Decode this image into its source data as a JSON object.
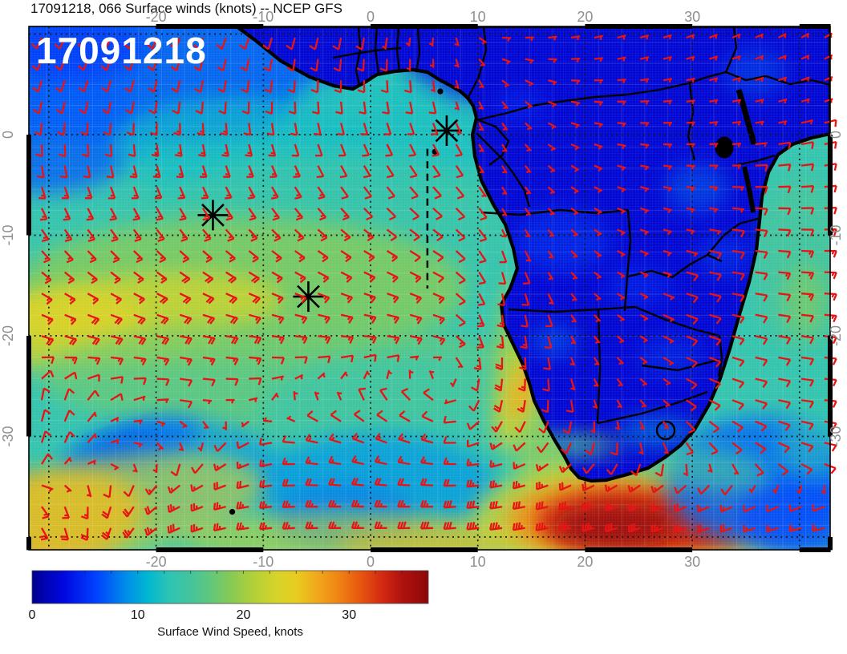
{
  "title": "17091218, 066 Surface winds (knots) -- NCEP GFS",
  "overlay_label": "17091218",
  "colors": {
    "barb": "#e81414",
    "land_border": "#000000",
    "grid": "#1a1a1a",
    "tick_label": "#8f8f8f",
    "title": "#111111",
    "overlay": "#ffffff",
    "frame": "#000000",
    "track": "#111111"
  },
  "axes": {
    "lon_tick_labels": [
      "-20",
      "-10",
      "0",
      "10",
      "20",
      "30"
    ],
    "lon_tick_values": [
      -20,
      -10,
      0,
      10,
      20,
      30
    ],
    "lat_tick_labels": [
      "0",
      "-10",
      "-20",
      "-30"
    ],
    "lat_tick_values": [
      0,
      -10,
      -20,
      -30
    ],
    "lon_gridlines": [
      -30,
      -20,
      -10,
      0,
      10,
      20,
      30,
      40
    ],
    "lat_gridlines": [
      10,
      0,
      -10,
      -20,
      -30,
      -40
    ],
    "lon_range": [
      -31.9,
      42.9
    ],
    "lat_range": [
      -41.3,
      10.8
    ]
  },
  "colorbar": {
    "label": "Surface Wind Speed, knots",
    "tick_labels": [
      "0",
      "10",
      "20",
      "30"
    ],
    "tick_values": [
      0,
      10,
      20,
      30
    ],
    "min_kt": 0,
    "max_kt": 37.5,
    "stops": [
      [
        0,
        "#000090"
      ],
      [
        3,
        "#0008e0"
      ],
      [
        6,
        "#0040ff"
      ],
      [
        9,
        "#0090e8"
      ],
      [
        11,
        "#00b8d0"
      ],
      [
        13,
        "#2ec4b4"
      ],
      [
        15,
        "#44c49c"
      ],
      [
        17,
        "#62c878"
      ],
      [
        19,
        "#8aca52"
      ],
      [
        21,
        "#b2d038"
      ],
      [
        23,
        "#d4d42a"
      ],
      [
        25,
        "#e8cc20"
      ],
      [
        27,
        "#f0a81c"
      ],
      [
        29,
        "#f08414"
      ],
      [
        31,
        "#e85810"
      ],
      [
        33,
        "#d42c10"
      ],
      [
        35,
        "#b01210"
      ],
      [
        37.5,
        "#8c0808"
      ]
    ]
  },
  "chart_data": {
    "type": "heatmap",
    "field": "surface wind speed (knots) with wind barbs",
    "model": "NCEP GFS",
    "run": "17091218",
    "forecast_hour": "066",
    "region": "South Atlantic and southern Africa",
    "ocean_base_kt": 13.5,
    "land_base_kt": 2.5,
    "wind_barbs": {
      "color_key": "barb",
      "lons": [
        -30,
        -24,
        -18,
        -12,
        -6,
        0,
        6,
        12,
        18,
        24,
        30,
        36,
        42
      ],
      "lats": [
        10,
        4,
        -2,
        -8,
        -14,
        -20,
        -26,
        -32,
        -38
      ],
      "dir_from_deg": [
        [
          205,
          205,
          200,
          200,
          195,
          190,
          185,
          90,
          80,
          75,
          70,
          65,
          60
        ],
        [
          195,
          195,
          190,
          185,
          180,
          175,
          170,
          140,
          100,
          85,
          80,
          75,
          70
        ],
        [
          175,
          172,
          168,
          163,
          158,
          152,
          148,
          150,
          120,
          100,
          90,
          85,
          80
        ],
        [
          152,
          150,
          147,
          143,
          138,
          133,
          130,
          150,
          130,
          110,
          100,
          95,
          88
        ],
        [
          128,
          126,
          123,
          120,
          117,
          114,
          118,
          165,
          140,
          115,
          105,
          98,
          92
        ],
        [
          106,
          104,
          101,
          98,
          96,
          95,
          105,
          175,
          155,
          125,
          112,
          102,
          96
        ],
        [
          10,
          60,
          95,
          80,
          355,
          340,
          310,
          190,
          170,
          140,
          120,
          105,
          95
        ],
        [
          20,
          80,
          170,
          240,
          275,
          285,
          280,
          255,
          215,
          180,
          150,
          125,
          105
        ],
        [
          150,
          200,
          245,
          262,
          268,
          270,
          268,
          262,
          258,
          252,
          250,
          252,
          255
        ]
      ],
      "speed_kt": [
        [
          10,
          10,
          10,
          8,
          8,
          8,
          5,
          4,
          4,
          4,
          4,
          5,
          6
        ],
        [
          10,
          12,
          12,
          12,
          10,
          10,
          8,
          4,
          4,
          4,
          4,
          5,
          6
        ],
        [
          12,
          12,
          14,
          14,
          12,
          12,
          10,
          5,
          4,
          4,
          5,
          8,
          10
        ],
        [
          14,
          14,
          16,
          16,
          14,
          12,
          12,
          6,
          5,
          5,
          6,
          8,
          12
        ],
        [
          16,
          16,
          18,
          18,
          16,
          14,
          12,
          10,
          6,
          6,
          8,
          12,
          15
        ],
        [
          18,
          20,
          20,
          18,
          16,
          14,
          14,
          18,
          6,
          6,
          8,
          10,
          12
        ],
        [
          10,
          8,
          8,
          6,
          5,
          8,
          10,
          20,
          8,
          6,
          8,
          10,
          12
        ],
        [
          12,
          5,
          8,
          14,
          16,
          16,
          14,
          14,
          12,
          8,
          8,
          10,
          12
        ],
        [
          20,
          24,
          28,
          26,
          24,
          26,
          30,
          36,
          37,
          30,
          22,
          16,
          13
        ]
      ]
    },
    "speed_field_blobs_columns": [
      "lon",
      "lat",
      "rx_deg",
      "ry_deg",
      "rot_deg",
      "knots",
      "opacity"
    ],
    "speed_field_blobs": [
      [
        -21.1,
        6.2,
        19.4,
        7.2,
        0,
        7,
        0.9
      ],
      [
        -30.1,
        0.6,
        9,
        6.4,
        0,
        7,
        0.8
      ],
      [
        -27.8,
        8.6,
        6.7,
        3.2,
        0,
        5.5,
        0.8
      ],
      [
        -12.1,
        -1,
        12,
        4.8,
        0,
        11.5,
        0.7
      ],
      [
        1.3,
        -0.2,
        9.7,
        6.4,
        0,
        12,
        0.8
      ],
      [
        -2.4,
        3.8,
        4.5,
        2,
        0,
        12.5,
        0.7
      ],
      [
        7.9,
        7.2,
        4.5,
        2.4,
        0,
        4,
        0.85
      ],
      [
        9.6,
        5.2,
        3,
        2,
        0,
        4,
        0.6
      ],
      [
        -3.1,
        -8.9,
        16.5,
        7.2,
        0,
        14,
        0.8
      ],
      [
        -12.1,
        -15.3,
        21,
        7.2,
        0,
        18.5,
        0.85
      ],
      [
        -23.3,
        -18.5,
        15,
        4.4,
        -8,
        22,
        0.9
      ],
      [
        -27.8,
        -18.2,
        6.7,
        2.8,
        0,
        23.5,
        0.9
      ],
      [
        -8.4,
        -24.1,
        22.4,
        5.6,
        0,
        17.5,
        0.7
      ],
      [
        4.3,
        -28,
        15,
        6.4,
        0,
        14,
        0.75
      ],
      [
        13.9,
        -24.7,
        2.1,
        6.8,
        12,
        22.5,
        0.9
      ],
      [
        14.2,
        -25.4,
        1.1,
        3.2,
        12,
        27,
        0.9
      ],
      [
        13.2,
        -18.9,
        1.4,
        4.8,
        8,
        20,
        0.7
      ],
      [
        17.1,
        -31.4,
        3.7,
        4.8,
        0,
        21,
        0.55
      ],
      [
        0.6,
        -35.2,
        11.2,
        5.6,
        0,
        9.5,
        0.8
      ],
      [
        -2.4,
        -38,
        6.7,
        3.2,
        0,
        8,
        0.7
      ],
      [
        -22.2,
        -31.6,
        6.4,
        2.2,
        -18,
        6,
        0.95
      ],
      [
        -23.3,
        -31.1,
        3.4,
        1.1,
        -18,
        4,
        0.9
      ],
      [
        -18.8,
        -33.6,
        10.5,
        5.6,
        0,
        9,
        0.6
      ],
      [
        -30.1,
        -38.4,
        9,
        4.8,
        -10,
        28,
        0.9
      ],
      [
        -23.3,
        -36.7,
        13.5,
        4.8,
        -8,
        23,
        0.6
      ],
      [
        -2.4,
        -40.2,
        15,
        2.8,
        0,
        22,
        0.6
      ],
      [
        7.3,
        -40.8,
        10.5,
        2,
        0,
        26,
        0.55
      ],
      [
        24.5,
        -38,
        15,
        5.6,
        0,
        23,
        0.75
      ],
      [
        24.5,
        -38.2,
        12,
        4.2,
        0,
        28,
        0.9
      ],
      [
        24.2,
        -38.4,
        9,
        3.2,
        0,
        33,
        0.95
      ],
      [
        23,
        -38.9,
        6,
        2.2,
        0,
        36.5,
        0.95
      ],
      [
        31.3,
        -39.4,
        3.7,
        1.8,
        0,
        34,
        0.8
      ],
      [
        36.5,
        -34.4,
        9,
        6.4,
        0,
        7.5,
        0.85
      ],
      [
        40.2,
        -38,
        6,
        4,
        0,
        6,
        0.7
      ],
      [
        40.2,
        -12.9,
        4.5,
        8.8,
        0,
        15,
        0.85
      ],
      [
        40.5,
        -16.5,
        1.9,
        3.6,
        0,
        18,
        0.8
      ],
      [
        29.8,
        -32.8,
        7.5,
        2.2,
        8,
        15,
        0.6
      ],
      [
        41.1,
        -30.8,
        3,
        3.2,
        0,
        13,
        0.5
      ]
    ],
    "land_patches": [
      [
        17.8,
        -30.9,
        3.4,
        1.1,
        0,
        15,
        0.8
      ],
      [
        21.4,
        -30.9,
        2.2,
        1,
        0,
        17,
        0.5
      ],
      [
        17.1,
        -20.5,
        2.2,
        1.6,
        0,
        8,
        0.5
      ],
      [
        30.5,
        -5.3,
        3,
        2.4,
        0,
        8,
        0.45
      ],
      [
        35.8,
        6.2,
        3,
        2.4,
        0,
        7.5,
        0.4
      ],
      [
        17.8,
        -10.5,
        4.5,
        3.2,
        0,
        6.5,
        0.4
      ],
      [
        26.8,
        -29.6,
        3.7,
        1.6,
        0,
        10,
        0.5
      ],
      [
        14,
        3,
        2.5,
        1.5,
        0,
        6,
        0.35
      ],
      [
        25,
        -15,
        3,
        2,
        0,
        6,
        0.35
      ],
      [
        33,
        -12,
        2.5,
        2,
        0,
        7,
        0.35
      ],
      [
        28,
        -22,
        3,
        2,
        0,
        7,
        0.3
      ],
      [
        40,
        -5,
        2,
        3,
        0,
        9,
        0.4
      ],
      [
        38,
        -10,
        1.5,
        2,
        0,
        12,
        0.45
      ]
    ],
    "markers": [
      [
        7.1,
        0.4
      ],
      [
        -14.7,
        -8.0
      ],
      [
        -5.8,
        -16.1
      ]
    ],
    "track": {
      "lon": 5.3,
      "lat_from": -1.4,
      "lat_to": -15.3
    },
    "islands": [
      [
        6.5,
        4.3
      ],
      [
        -12.9,
        -37.5
      ],
      [
        6.0,
        -1.7
      ]
    ]
  }
}
